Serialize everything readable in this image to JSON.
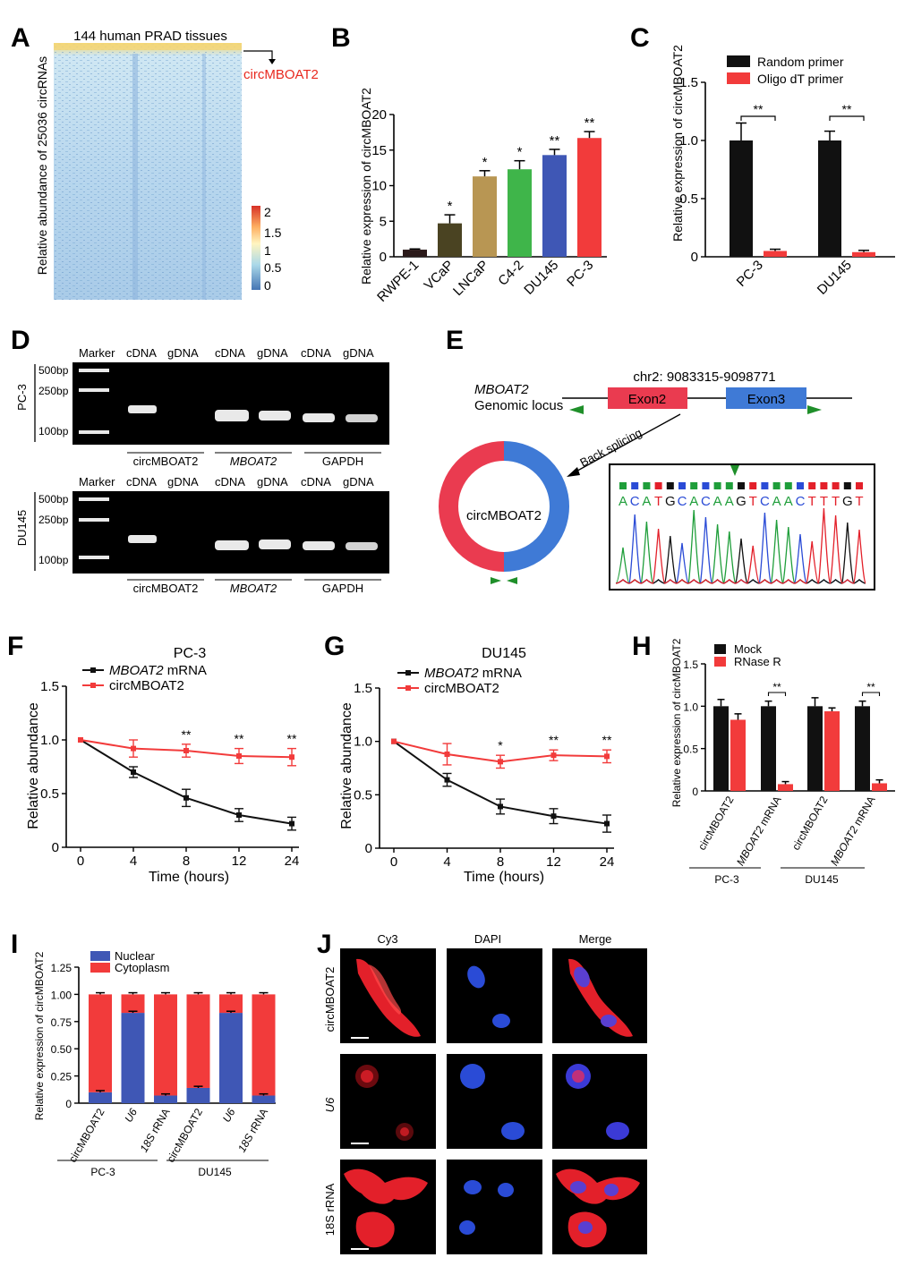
{
  "colors": {
    "black": "#111111",
    "red": "#f23b3b",
    "blue": "#3f57b5",
    "exon_red": "#ea3b50",
    "exon_blue": "#3f7ad6",
    "primer_green": "#1f8f2a",
    "bar_rwpe": "#2b1a1a",
    "bar_vcap": "#4a4322",
    "bar_lncap": "#b89653",
    "bar_c42": "#3fb54a",
    "bar_du145": "#3f57b5",
    "bar_pc3": "#f23b3b"
  },
  "panels": {
    "A": "A",
    "B": "B",
    "C": "C",
    "D": "D",
    "E": "E",
    "F": "F",
    "G": "G",
    "H": "H",
    "I": "I",
    "J": "J"
  },
  "panel_a": {
    "title": "144 human PRAD tissues",
    "ylabel": "Relative abundance of 25036 circRNAs",
    "highlight": "circMBOAT2",
    "scale_ticks": [
      "2",
      "1.5",
      "1",
      "0.5",
      "0"
    ]
  },
  "panel_d": {
    "marker": "Marker",
    "ladder": [
      "500bp",
      "250bp",
      "100bp"
    ],
    "lanes": [
      "cDNA",
      "gDNA",
      "cDNA",
      "gDNA",
      "cDNA",
      "gDNA"
    ],
    "groups": [
      "circMBOAT2",
      "MBOAT2",
      "GAPDH"
    ],
    "cells": [
      "PC-3",
      "DU145"
    ]
  },
  "panel_e": {
    "gene": "MBOAT2",
    "gene_sub": "Genomic locus",
    "coords": "chr2: 9083315-9098771",
    "exon2": "Exon2",
    "exon3": "Exon3",
    "back_splicing": "Back splicing",
    "circ_label": "circMBOAT2",
    "sequence": [
      "A",
      "C",
      "A",
      "T",
      "G",
      "C",
      "A",
      "C",
      "A",
      "A",
      "G",
      "T",
      "C",
      "A",
      "A",
      "C",
      "T",
      "T",
      "T",
      "G",
      "T"
    ]
  },
  "panel_j": {
    "columns": [
      "Cy3",
      "DAPI",
      "Merge"
    ],
    "rows": [
      "circMBOAT2",
      "U6",
      "18S rRNA"
    ]
  },
  "chart_data": [
    {
      "panel": "B",
      "type": "bar",
      "categories": [
        "RWPE-1",
        "VCaP",
        "LNCaP",
        "C4-2",
        "DU145",
        "PC-3"
      ],
      "values": [
        1.0,
        4.7,
        11.3,
        12.3,
        14.3,
        16.7
      ],
      "errors": [
        0.1,
        1.2,
        0.8,
        1.2,
        0.8,
        0.9
      ],
      "significance": [
        "",
        "*",
        "*",
        "*",
        "**",
        "**"
      ],
      "ylabel": "Relative expression of circMBOAT2",
      "ylim": [
        0,
        20
      ],
      "yticks": [
        "0",
        "5",
        "10",
        "15",
        "20"
      ]
    },
    {
      "panel": "C",
      "type": "bar",
      "categories": [
        "PC-3",
        "DU145"
      ],
      "series": [
        {
          "name": "Random primer",
          "values": [
            1.0,
            1.0
          ],
          "errors": [
            0.15,
            0.08
          ]
        },
        {
          "name": "Oligo dT primer",
          "values": [
            0.05,
            0.04
          ],
          "errors": [
            0.015,
            0.015
          ]
        }
      ],
      "significance": [
        "**",
        "**"
      ],
      "ylabel": "Relative expression of circMBOAT2",
      "ylim": [
        0,
        1.5
      ],
      "yticks": [
        "0",
        "0.5",
        "1.0",
        "1.5"
      ]
    },
    {
      "panel": "F",
      "type": "line",
      "title": "PC-3",
      "x": [
        0,
        4,
        8,
        12,
        24
      ],
      "xticks": [
        "0",
        "4",
        "8",
        "12",
        "24"
      ],
      "series": [
        {
          "name": "MBOAT2 mRNA",
          "name_italic": "MBOAT2",
          "name_rest": " mRNA",
          "values": [
            1.0,
            0.7,
            0.46,
            0.3,
            0.22
          ],
          "errors": [
            0.01,
            0.05,
            0.08,
            0.06,
            0.06
          ]
        },
        {
          "name": "circMBOAT2",
          "values": [
            1.0,
            0.92,
            0.9,
            0.85,
            0.84
          ],
          "errors": [
            0.01,
            0.08,
            0.06,
            0.07,
            0.08
          ]
        }
      ],
      "significance": [
        "",
        "",
        "**",
        "**",
        "**"
      ],
      "xlabel": "Time (hours)",
      "ylabel": "Relative abundance",
      "ylim": [
        0,
        1.5
      ],
      "yticks": [
        "0",
        "0.5",
        "1.0",
        "1.5"
      ]
    },
    {
      "panel": "G",
      "type": "line",
      "title": "DU145",
      "x": [
        0,
        4,
        8,
        12,
        24
      ],
      "xticks": [
        "0",
        "4",
        "8",
        "12",
        "24"
      ],
      "series": [
        {
          "name": "MBOAT2 mRNA",
          "name_italic": "MBOAT2",
          "name_rest": " mRNA",
          "values": [
            1.0,
            0.64,
            0.39,
            0.3,
            0.23
          ],
          "errors": [
            0.01,
            0.06,
            0.07,
            0.07,
            0.08
          ]
        },
        {
          "name": "circMBOAT2",
          "values": [
            1.0,
            0.88,
            0.81,
            0.87,
            0.86
          ],
          "errors": [
            0.01,
            0.1,
            0.06,
            0.05,
            0.06
          ]
        }
      ],
      "significance": [
        "",
        "",
        "*",
        "**",
        "**"
      ],
      "xlabel": "Time (hours)",
      "ylabel": "Relative abundance",
      "ylim": [
        0,
        1.5
      ],
      "yticks": [
        "0",
        "0.5",
        "1.0",
        "1.5"
      ]
    },
    {
      "panel": "H",
      "type": "bar",
      "categories": [
        "circMBOAT2",
        "MBOAT2 mRNA",
        "circMBOAT2",
        "MBOAT2 mRNA"
      ],
      "groups": [
        "PC-3",
        "DU145"
      ],
      "series": [
        {
          "name": "Mock",
          "values": [
            1.0,
            1.0,
            1.0,
            1.0
          ],
          "errors": [
            0.08,
            0.06,
            0.1,
            0.06
          ]
        },
        {
          "name": "RNase R",
          "values": [
            0.84,
            0.08,
            0.94,
            0.09
          ],
          "errors": [
            0.07,
            0.03,
            0.04,
            0.04
          ]
        }
      ],
      "significance": [
        "",
        "**",
        "",
        "**"
      ],
      "ylabel": "Relative expression of circMBOAT2",
      "ylim": [
        0,
        1.5
      ],
      "yticks": [
        "0",
        "0.5",
        "1.0",
        "1.5"
      ]
    },
    {
      "panel": "I",
      "type": "bar",
      "stacked": true,
      "categories": [
        "circMBOAT2",
        "U6",
        "18S rRNA",
        "circMBOAT2",
        "U6",
        "18S rRNA"
      ],
      "groups": [
        "PC-3",
        "DU145"
      ],
      "series": [
        {
          "name": "Nuclear",
          "values": [
            0.1,
            0.83,
            0.07,
            0.14,
            0.83,
            0.07
          ]
        },
        {
          "name": "Cytoplasm",
          "values": [
            0.9,
            0.17,
            0.93,
            0.86,
            0.17,
            0.93
          ]
        }
      ],
      "ylabel": "Relative expression of circMBOAT2",
      "ylim": [
        0,
        1.25
      ],
      "yticks": [
        "0",
        "0.25",
        "0.50",
        "0.75",
        "1.00",
        "1.25"
      ]
    }
  ]
}
